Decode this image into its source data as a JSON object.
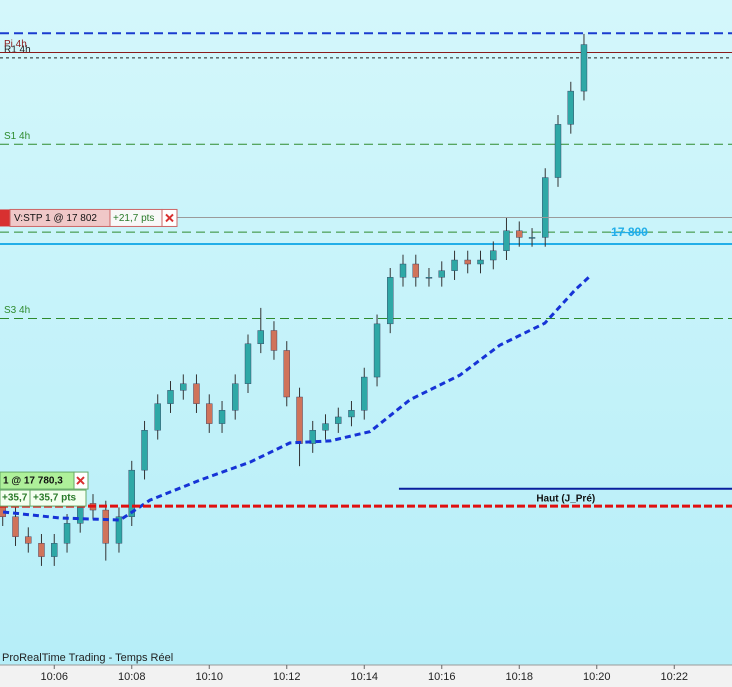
{
  "chart_data": {
    "type": "candlestick",
    "footer": "ProRealTime Trading - Temps Réel",
    "xlim": [
      4.6,
      23.49
    ],
    "ylim": [
      17768.35,
      17818.35
    ],
    "xticks": [
      {
        "value": 6,
        "label": "10:06"
      },
      {
        "value": 8,
        "label": "10:08"
      },
      {
        "value": 10,
        "label": "10:10"
      },
      {
        "value": 12,
        "label": "10:12"
      },
      {
        "value": 14,
        "label": "10:14"
      },
      {
        "value": 16,
        "label": "10:16"
      },
      {
        "value": 18,
        "label": "10:18"
      },
      {
        "value": 20,
        "label": "10:20"
      },
      {
        "value": 22,
        "label": "10:22"
      }
    ],
    "up_color": "#2ea8a6",
    "down_color": "#d0735a",
    "x": [
      4.67,
      5,
      5.33,
      5.67,
      6,
      6.33,
      6.67,
      7,
      7.33,
      7.67,
      8,
      8.33,
      8.67,
      9,
      9.33,
      9.67,
      10,
      10.33,
      10.67,
      11,
      11.33,
      11.67,
      12,
      12.33,
      12.67,
      13,
      13.33,
      13.67,
      14,
      14.33,
      14.67,
      15,
      15.33,
      15.67,
      16,
      16.33,
      16.67,
      17,
      17.33,
      17.67,
      18,
      18.33,
      18.67,
      19,
      19.33,
      19.67
    ],
    "open": [
      17780.5,
      17779.5,
      17778,
      17777.5,
      17776.5,
      17777.5,
      17779,
      17780.5,
      17780,
      17777.5,
      17779.5,
      17783,
      17786,
      17788,
      17789,
      17789.5,
      17788,
      17786.5,
      17787.5,
      17789.5,
      17792.5,
      17793.5,
      17792,
      17788.5,
      17785,
      17786,
      17786.5,
      17787,
      17787.5,
      17790,
      17794,
      17797.5,
      17798.5,
      17797.5,
      17797.5,
      17798,
      17798.8,
      17798.5,
      17798.8,
      17799.5,
      17801,
      17800.5,
      17800.5,
      17805,
      17809,
      17811.5
    ],
    "high": [
      17781.2,
      17780.2,
      17778.7,
      17778.2,
      17778.2,
      17779.7,
      17781.2,
      17781.2,
      17780.7,
      17780.2,
      17783.7,
      17786.7,
      17788.7,
      17789.7,
      17790.2,
      17790.2,
      17788.7,
      17788.2,
      17790.2,
      17793.2,
      17795.2,
      17794.2,
      17792.7,
      17789.2,
      17786.7,
      17787.2,
      17787.7,
      17788.2,
      17790.7,
      17794.7,
      17798.2,
      17799.2,
      17799.2,
      17798.2,
      17798.7,
      17799.5,
      17799.5,
      17799.5,
      17800.2,
      17802,
      17801.7,
      17801.2,
      17805.7,
      17809.7,
      17812.2,
      17815.8
    ],
    "low": [
      17778.8,
      17777.3,
      17776.8,
      17775.8,
      17775.8,
      17776.8,
      17778.3,
      17779.3,
      17776.2,
      17776.8,
      17778.8,
      17782.3,
      17785.3,
      17787.3,
      17788.3,
      17787.3,
      17785.8,
      17785.8,
      17786.8,
      17788.8,
      17791.8,
      17791.3,
      17787.8,
      17783.3,
      17784.3,
      17785.3,
      17785.8,
      17786.3,
      17786.8,
      17789.3,
      17793.3,
      17796.8,
      17796.8,
      17796.8,
      17796.8,
      17797.3,
      17797.8,
      17797.8,
      17798.1,
      17798.8,
      17799.8,
      17799.8,
      17799.8,
      17804.3,
      17808.3,
      17810.8
    ],
    "close": [
      17779.5,
      17778,
      17777.5,
      17776.5,
      17777.5,
      17779,
      17780.5,
      17780,
      17777.5,
      17779.5,
      17783,
      17786,
      17788,
      17789,
      17789.5,
      17788,
      17786.5,
      17787.5,
      17789.5,
      17792.5,
      17793.5,
      17792,
      17788.5,
      17785,
      17786,
      17786.5,
      17787,
      17787.5,
      17790,
      17794,
      17797.5,
      17798.5,
      17797.5,
      17797.5,
      17798,
      17798.8,
      17798.5,
      17798.8,
      17799.5,
      17801,
      17800.5,
      17800.5,
      17805,
      17809,
      17811.5,
      17815
    ],
    "ma": {
      "color": "#1633d6",
      "x": [
        4.68,
        6.15,
        7.7,
        8.47,
        9.76,
        11.05,
        12.08,
        13.12,
        14.15,
        15.18,
        16.47,
        17.5,
        18.66,
        19.44,
        19.85
      ],
      "values": [
        17779.85,
        17779.4,
        17779.25,
        17780.75,
        17782.25,
        17783.6,
        17785.05,
        17785.2,
        17785.9,
        17788.3,
        17790.15,
        17792.4,
        17794.05,
        17796.55,
        17797.65
      ]
    },
    "levels": [
      {
        "value": 17815.85,
        "color": "#1a3ccf",
        "style": "dashed",
        "width": 2
      },
      {
        "label": "R1 4h",
        "value": 17814,
        "color": "#222222",
        "style": "dotted",
        "width": 1
      },
      {
        "label": "Pi 4h",
        "value": 17814.4,
        "color": "#8b1a1a",
        "style": "solid",
        "width": 1
      },
      {
        "label": "S1 4h",
        "value": 17807.5,
        "color": "#2e8b2e",
        "style": "dashed",
        "width": 1
      },
      {
        "value": 17800.9,
        "color": "#2e8b2e",
        "style": "dashed",
        "width": 1
      },
      {
        "label": "17 800",
        "value": 17800,
        "color": "#22aee8",
        "style": "solid",
        "width": 2,
        "label_side": "right"
      },
      {
        "label": "S3 4h",
        "value": 17794.4,
        "color": "#2e8b2e",
        "style": "dashed",
        "width": 1
      },
      {
        "label": "Haut (J_Pré)",
        "value": 17781.6,
        "color": "#0a1f9e",
        "style": "solid",
        "width": 2,
        "span": "right"
      }
    ],
    "orders": [
      {
        "label": "V:STP 1 @ 17 802",
        "gain": "+21,7 pts",
        "price": 17802,
        "color": "#9a9a9a",
        "tag_color": "#f0c8c8"
      },
      {
        "label": "1 @ 17 780,3",
        "gain": "+35,7",
        "gain_pts": "+35,7 pts",
        "price": 17780.3,
        "color": "#e01010",
        "tag_color": "#aef09a"
      }
    ]
  }
}
